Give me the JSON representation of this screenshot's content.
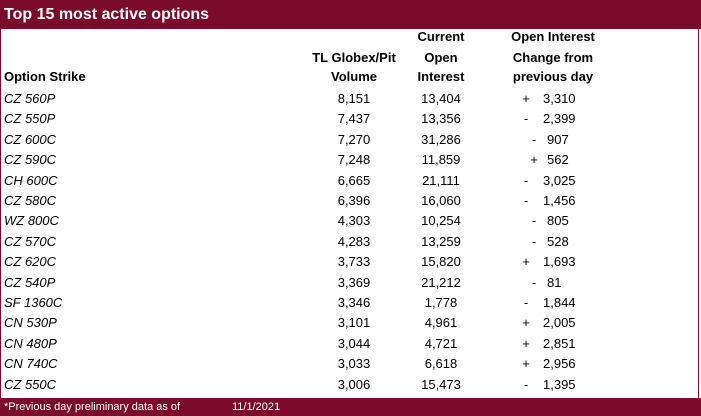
{
  "title": "Top 15 most active options",
  "headers": {
    "strike": "Option Strike",
    "volume": [
      "TL Globex/Pit",
      "Volume"
    ],
    "open_interest": [
      "Current",
      "Open",
      "Interest"
    ],
    "change": [
      "Open Interest",
      "Change from",
      "previous day"
    ]
  },
  "rows": [
    {
      "strike": "CZ 560P",
      "volume": "8,151",
      "oi": "13,404",
      "sign": "+",
      "change": "3,310"
    },
    {
      "strike": "CZ 550P",
      "volume": "7,437",
      "oi": "13,356",
      "sign": "-",
      "change": "2,399"
    },
    {
      "strike": "CZ 600C",
      "volume": "7,270",
      "oi": "31,286",
      "sign": "-",
      "change": "907"
    },
    {
      "strike": "CZ 590C",
      "volume": "7,248",
      "oi": "11,859",
      "sign": "+",
      "change": "562"
    },
    {
      "strike": "CH 600C",
      "volume": "6,665",
      "oi": "21,111",
      "sign": "-",
      "change": "3,025"
    },
    {
      "strike": "CZ 580C",
      "volume": "6,396",
      "oi": "16,060",
      "sign": "-",
      "change": "1,456"
    },
    {
      "strike": "WZ 800C",
      "volume": "4,303",
      "oi": "10,254",
      "sign": "-",
      "change": "805"
    },
    {
      "strike": "CZ 570C",
      "volume": "4,283",
      "oi": "13,259",
      "sign": "-",
      "change": "528"
    },
    {
      "strike": "CZ 620C",
      "volume": "3,733",
      "oi": "15,820",
      "sign": "+",
      "change": "1,693"
    },
    {
      "strike": "CZ 540P",
      "volume": "3,369",
      "oi": "21,212",
      "sign": "-",
      "change": "81"
    },
    {
      "strike": "SF 1360C",
      "volume": "3,346",
      "oi": "1,778",
      "sign": "-",
      "change": "1,844"
    },
    {
      "strike": "CN 530P",
      "volume": "3,101",
      "oi": "4,961",
      "sign": "+",
      "change": "2,005"
    },
    {
      "strike": "CN 480P",
      "volume": "3,044",
      "oi": "4,721",
      "sign": "+",
      "change": "2,851"
    },
    {
      "strike": "CN 740C",
      "volume": "3,033",
      "oi": "6,618",
      "sign": "+",
      "change": "2,956"
    },
    {
      "strike": "CZ 550C",
      "volume": "3,006",
      "oi": "15,473",
      "sign": "-",
      "change": "1,395"
    }
  ],
  "footer": {
    "note": "*Previous day preliminary data as of",
    "date": "11/1/2021"
  },
  "colors": {
    "accent": "#7a0b2a",
    "header_text": "#ffffff"
  }
}
